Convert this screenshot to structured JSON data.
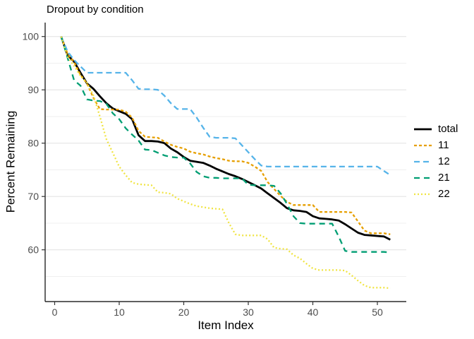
{
  "chart_data": {
    "type": "line",
    "title": "Dropout by condition",
    "xlabel": "Item Index",
    "ylabel": "Percent Remaining",
    "x_ticks": [
      0,
      10,
      20,
      30,
      40,
      50
    ],
    "y_ticks": [
      60,
      70,
      80,
      90,
      100
    ],
    "y_minor_gridlines": [
      55,
      65,
      75,
      85,
      95
    ],
    "xlim": [
      -1.5,
      54.5
    ],
    "ylim": [
      50.3,
      102.6
    ],
    "grid": "horizontal-only",
    "legend_position": "right",
    "x_start_item": 1,
    "x_end_item": 52,
    "axis_color": "#000000",
    "tick_label_color": "#4d4d4d",
    "gridline_major_color": "#e4e4e4",
    "gridline_minor_color": "#efefef",
    "series": [
      {
        "name": "total",
        "color": "#000000",
        "dash": "",
        "width": 2.8,
        "values": [
          100,
          96.5,
          95.3,
          93.2,
          91.2,
          90.2,
          88.8,
          87.5,
          86.5,
          86.0,
          85.5,
          84.5,
          81.5,
          80.4,
          80.4,
          80.3,
          80.0,
          79.0,
          78.3,
          77.4,
          76.7,
          76.5,
          76.3,
          75.8,
          75.2,
          74.7,
          74.2,
          73.8,
          73.3,
          72.7,
          72.1,
          71.5,
          70.6,
          69.7,
          68.8,
          67.8,
          67.4,
          67.3,
          67.1,
          66.3,
          65.9,
          65.8,
          65.7,
          65.5,
          64.8,
          64.0,
          63.2,
          62.8,
          62.7,
          62.6,
          62.5,
          61.9
        ]
      },
      {
        "name": "11",
        "color": "#E69F00",
        "dash": "4 3",
        "width": 2.3,
        "values": [
          100,
          96.8,
          95.2,
          92.8,
          91.2,
          88.5,
          86.4,
          86.3,
          86.3,
          86.3,
          85.9,
          84.8,
          82.3,
          81.2,
          81.1,
          81.0,
          80.3,
          79.7,
          79.3,
          79.0,
          78.4,
          78.1,
          77.9,
          77.5,
          77.2,
          77.0,
          76.7,
          76.6,
          76.6,
          76.3,
          75.6,
          74.8,
          72.7,
          71.4,
          70.1,
          69.0,
          68.4,
          68.4,
          68.4,
          68.4,
          67.1,
          67.1,
          67.1,
          67.1,
          67.1,
          67.0,
          65.3,
          63.6,
          63.1,
          63.1,
          63.1,
          62.9
        ]
      },
      {
        "name": "12",
        "color": "#56B4E9",
        "dash": "8 5",
        "width": 2.3,
        "values": [
          100,
          97.2,
          95.6,
          94.4,
          93.2,
          93.2,
          93.2,
          93.2,
          93.2,
          93.2,
          93.2,
          91.8,
          90.2,
          90.1,
          90.1,
          90.0,
          88.9,
          87.5,
          86.4,
          86.4,
          86.4,
          84.8,
          82.9,
          81.2,
          81.0,
          81.0,
          81.0,
          80.9,
          79.6,
          78.3,
          77.0,
          75.8,
          75.6,
          75.6,
          75.6,
          75.6,
          75.6,
          75.6,
          75.6,
          75.6,
          75.6,
          75.6,
          75.6,
          75.6,
          75.6,
          75.6,
          75.6,
          75.6,
          75.6,
          75.6,
          74.8,
          74.0
        ]
      },
      {
        "name": "21",
        "color": "#009E73",
        "dash": "8 6",
        "width": 2.3,
        "values": [
          100,
          96.0,
          91.8,
          90.8,
          88.2,
          88.0,
          87.9,
          87.4,
          85.6,
          84.5,
          82.8,
          81.6,
          80.5,
          78.8,
          78.7,
          78.2,
          77.7,
          77.4,
          77.3,
          77.3,
          76.2,
          74.6,
          73.8,
          73.5,
          73.5,
          73.4,
          73.4,
          73.4,
          73.4,
          72.2,
          72.1,
          72.1,
          72.1,
          72.0,
          70.6,
          68.6,
          66.3,
          65.0,
          64.9,
          64.9,
          64.9,
          64.9,
          64.9,
          62.5,
          59.8,
          59.6,
          59.6,
          59.6,
          59.6,
          59.6,
          59.6,
          59.5
        ]
      },
      {
        "name": "22",
        "color": "#F0E442",
        "dash": "2 3",
        "width": 2.3,
        "values": [
          100,
          96.2,
          94.5,
          92.6,
          91.3,
          89.0,
          85.0,
          80.8,
          78.2,
          75.6,
          74.0,
          72.6,
          72.3,
          72.2,
          72.1,
          70.8,
          70.7,
          70.5,
          69.6,
          69.1,
          68.6,
          68.2,
          68.0,
          67.8,
          67.7,
          67.6,
          65.0,
          62.9,
          62.7,
          62.7,
          62.7,
          62.7,
          62.0,
          60.4,
          60.2,
          60.1,
          59.0,
          58.4,
          57.4,
          56.5,
          56.2,
          56.2,
          56.2,
          56.2,
          56.1,
          55.2,
          54.2,
          53.3,
          52.9,
          52.9,
          52.9,
          52.8
        ]
      }
    ]
  }
}
